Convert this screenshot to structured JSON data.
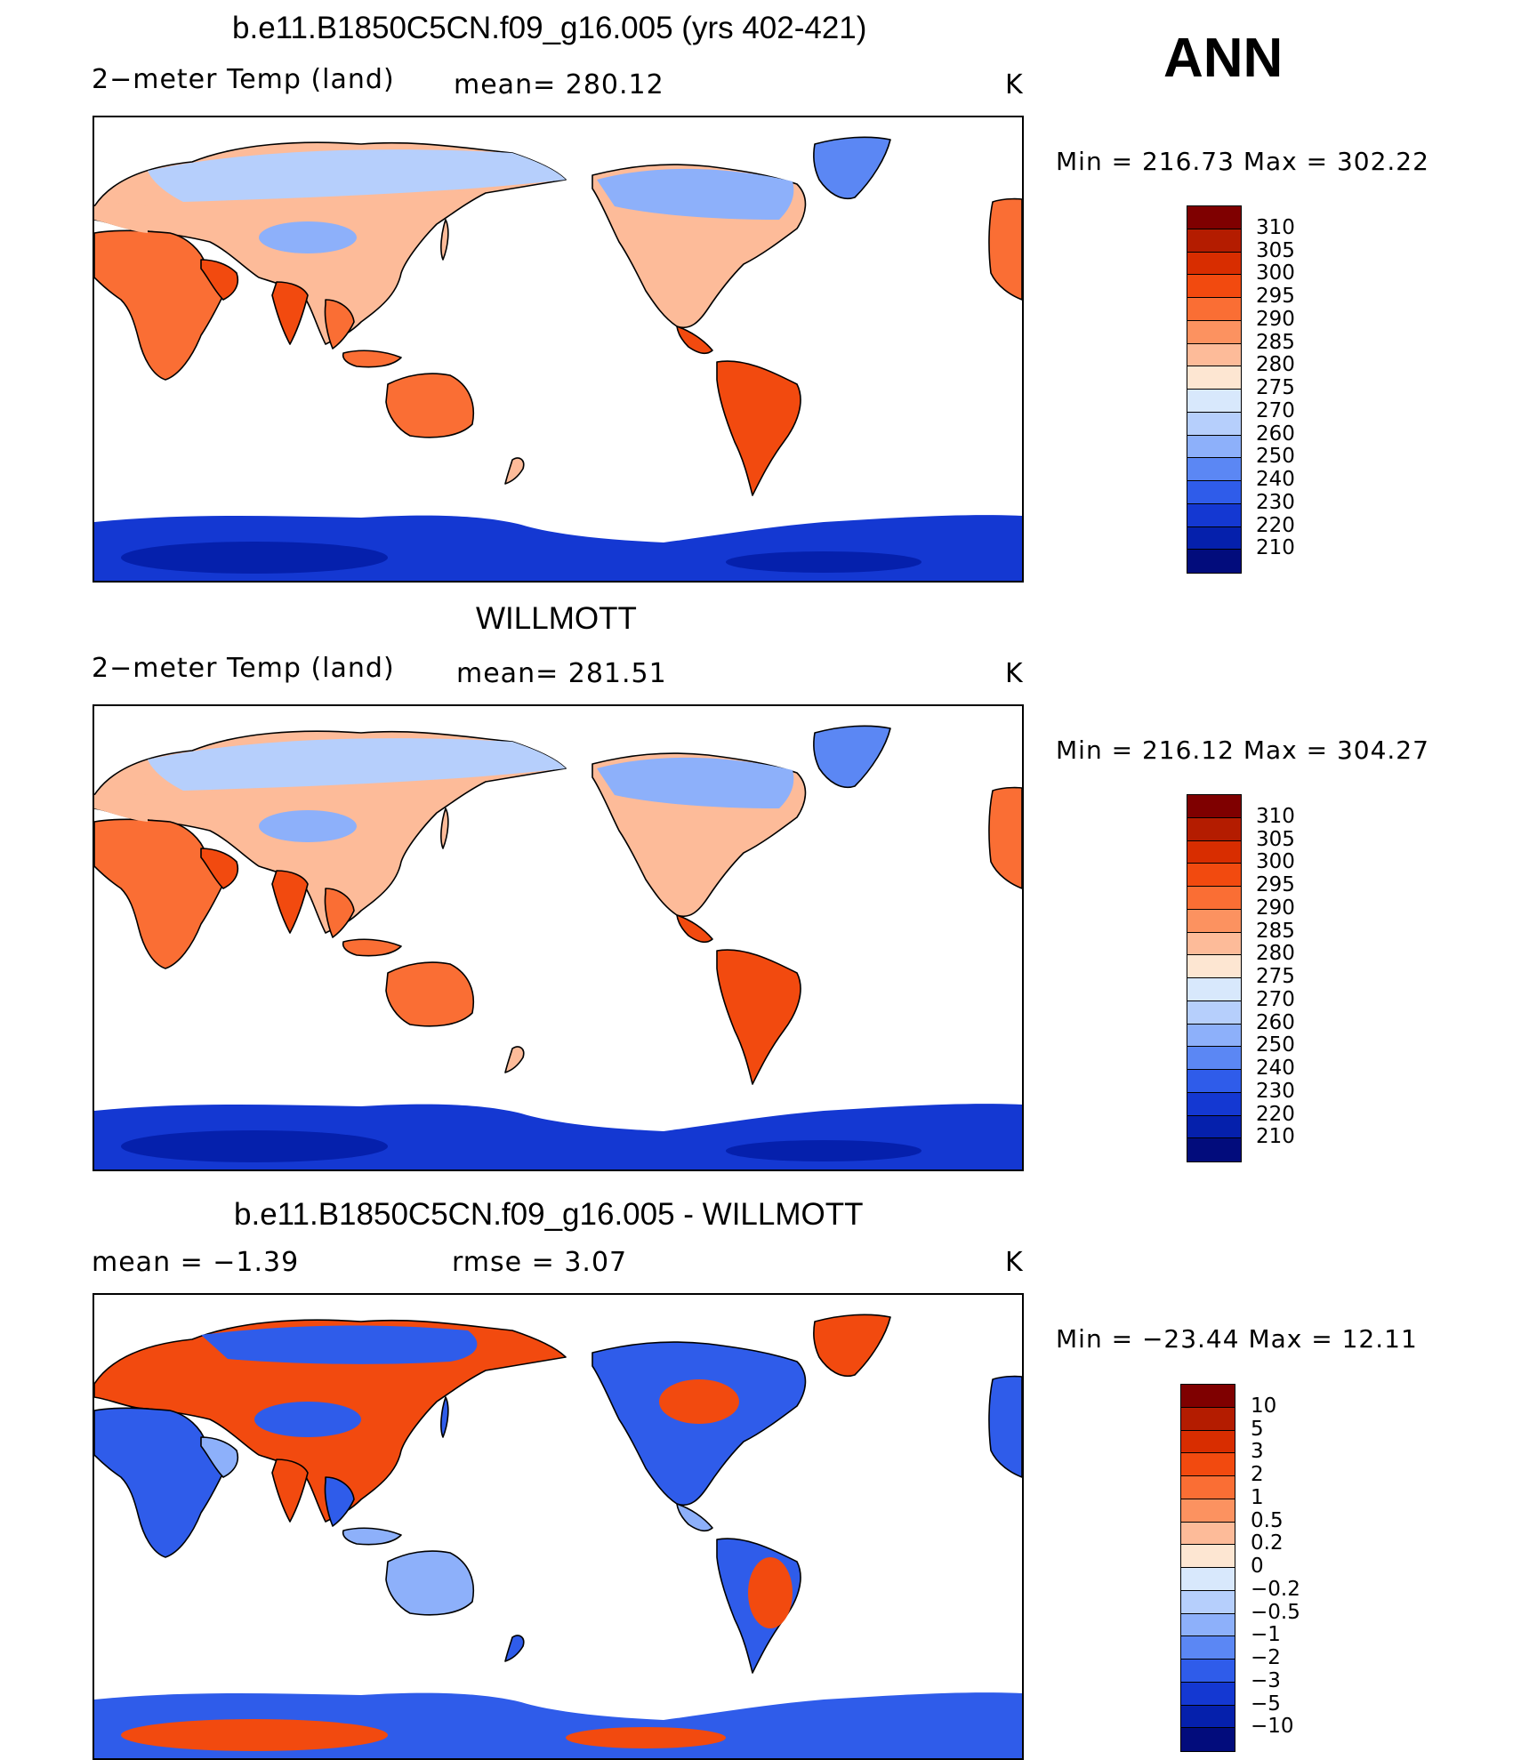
{
  "season": "ANN",
  "units": "K",
  "panels": [
    {
      "id": "model",
      "title": "b.e11.B1850C5CN.f09_g16.005 (yrs 402-421)",
      "left_text": "2−meter Temp (land)",
      "mid_text": "mean=  280.12",
      "right_text": "K",
      "minmax": "Min  =  216.73  Max  =  302.22",
      "map_style": "abs"
    },
    {
      "id": "obs",
      "title": "WILLMOTT",
      "left_text": "2−meter Temp (land)",
      "mid_text": "mean=  281.51",
      "right_text": "K",
      "minmax": "Min  =  216.12  Max  =  304.27",
      "map_style": "abs"
    },
    {
      "id": "diff",
      "title": "b.e11.B1850C5CN.f09_g16.005 - WILLMOTT",
      "left_text": "mean  =    −1.39",
      "mid_text": "rmse  =      3.07",
      "right_text": "K",
      "minmax": "Min  =  −23.44  Max  =    12.11",
      "map_style": "diff"
    }
  ],
  "colorbar_abs": {
    "labels": [
      "310",
      "305",
      "300",
      "295",
      "290",
      "285",
      "280",
      "275",
      "270",
      "260",
      "250",
      "240",
      "230",
      "220",
      "210"
    ],
    "colors": [
      "#7f0000",
      "#b41c00",
      "#d82d00",
      "#f24a0f",
      "#fa6e34",
      "#fc9260",
      "#fdbb99",
      "#fde6d2",
      "#d8e8fc",
      "#b6cffc",
      "#8db0fa",
      "#5b87f4",
      "#2f5cea",
      "#1438d2",
      "#0520ac",
      "#020c7c"
    ]
  },
  "colorbar_diff": {
    "labels": [
      "10",
      "5",
      "3",
      "2",
      "1",
      "0.5",
      "0.2",
      "0",
      "−0.2",
      "−0.5",
      "−1",
      "−2",
      "−3",
      "−5",
      "−10"
    ],
    "colors": [
      "#7f0000",
      "#b41c00",
      "#d82d00",
      "#f24a0f",
      "#fa6e34",
      "#fc9260",
      "#fdbb99",
      "#fde6d2",
      "#d8e8fc",
      "#b6cffc",
      "#8db0fa",
      "#5b87f4",
      "#2f5cea",
      "#1438d2",
      "#0520ac",
      "#020c7c"
    ]
  },
  "map_colors": {
    "antarctica": "#1438d2",
    "arctic_land": "#b6cffc",
    "cold_land": "#8db0fa",
    "cool_land": "#fdbb99",
    "warm_land": "#fa6e34",
    "hot_land": "#f24a0f",
    "greenland": "#5b87f4",
    "diff_cold": "#2f5cea",
    "diff_warm": "#f24a0f",
    "diff_mid": "#8db0fa"
  }
}
